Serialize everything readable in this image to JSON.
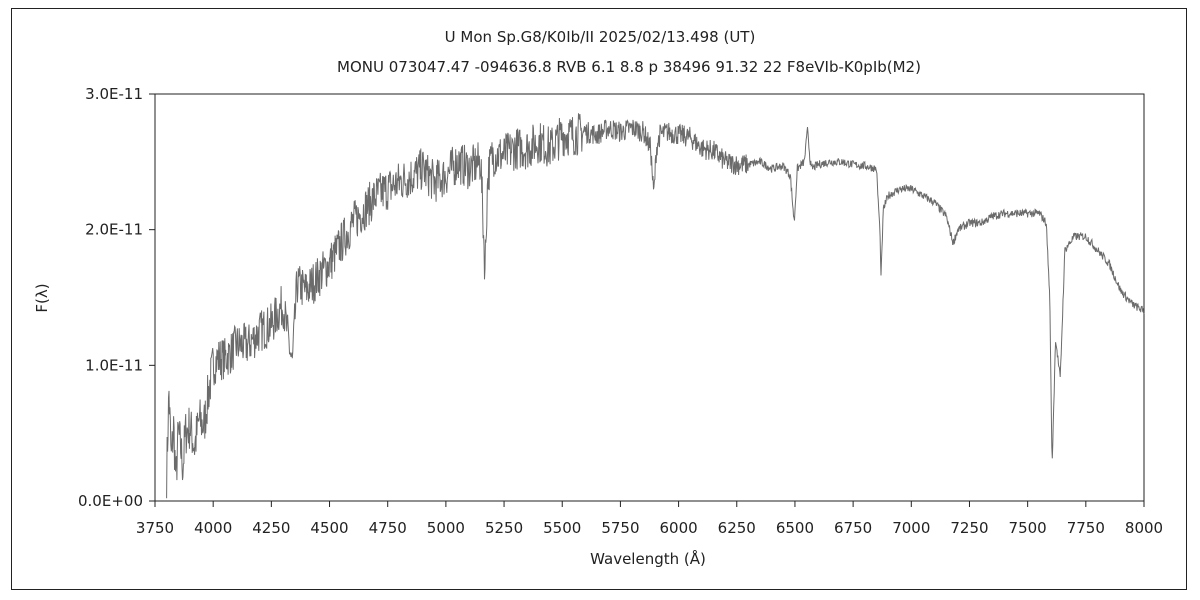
{
  "chart_data": {
    "type": "line",
    "title": "U Mon    Sp.G8/K0Ib/II    2025/02/13.498 (UT)",
    "subtitle": "MONU 073047.47 -094636.8 RVB 6.1 8.8 p 38496 91.32 22 F8eVIb-K0pIb(M2)",
    "xlabel": "Wavelength (Å)",
    "ylabel": "F(λ)",
    "xlim": [
      3750,
      8000
    ],
    "ylim": [
      0,
      3e-11
    ],
    "xticks": [
      "3750",
      "4000",
      "4250",
      "4500",
      "4750",
      "5000",
      "5250",
      "5500",
      "5750",
      "6000",
      "6250",
      "6500",
      "6750",
      "7000",
      "7250",
      "7500",
      "7750",
      "8000"
    ],
    "yticks": [
      "0.0E+00",
      "1.0E-11",
      "2.0E-11",
      "3.0E-11"
    ],
    "grid": false,
    "legend": "none",
    "line_color": "#6b6b6b",
    "series": [
      {
        "x": [
          3800,
          3810,
          3820,
          3830,
          3840,
          3850,
          3860,
          3870,
          3880,
          3900,
          3920,
          3940,
          3960,
          3980,
          4000,
          4020,
          4050,
          4080,
          4100,
          4150,
          4200,
          4250,
          4300,
          4340,
          4360,
          4400,
          4450,
          4500,
          4550,
          4600,
          4650,
          4700,
          4750,
          4800,
          4860,
          4900,
          4950,
          5000,
          5050,
          5100,
          5150,
          5168,
          5180,
          5200,
          5250,
          5300,
          5350,
          5400,
          5450,
          5500,
          5550,
          5600,
          5650,
          5700,
          5750,
          5800,
          5850,
          5880,
          5893,
          5905,
          5920,
          5950,
          6000,
          6050,
          6100,
          6150,
          6200,
          6250,
          6300,
          6350,
          6400,
          6450,
          6480,
          6497,
          6510,
          6540,
          6555,
          6563,
          6570,
          6600,
          6650,
          6700,
          6750,
          6800,
          6850,
          6865,
          6870,
          6880,
          6900,
          6950,
          7000,
          7050,
          7100,
          7150,
          7180,
          7200,
          7250,
          7300,
          7350,
          7400,
          7450,
          7500,
          7550,
          7580,
          7595,
          7605,
          7620,
          7640,
          7660,
          7700,
          7750,
          7800,
          7850,
          7900,
          7950,
          8000
        ],
        "y": [
          2e-12,
          8e-12,
          3e-12,
          5.5e-12,
          1.5e-12,
          5e-12,
          4e-12,
          2.5e-12,
          5e-12,
          5.5e-12,
          4e-12,
          6e-12,
          5.5e-12,
          8e-12,
          1e-11,
          1.05e-11,
          1.05e-11,
          1.1e-11,
          1.15e-11,
          1.15e-11,
          1.25e-11,
          1.3e-11,
          1.45e-11,
          1e-11,
          1.6e-11,
          1.55e-11,
          1.65e-11,
          1.75e-11,
          1.9e-11,
          2.05e-11,
          2.15e-11,
          2.25e-11,
          2.3e-11,
          2.35e-11,
          2.4e-11,
          2.45e-11,
          2.35e-11,
          2.4e-11,
          2.5e-11,
          2.45e-11,
          2.5e-11,
          1.7e-11,
          2.4e-11,
          2.55e-11,
          2.55e-11,
          2.6e-11,
          2.6e-11,
          2.65e-11,
          2.6e-11,
          2.7e-11,
          2.7e-11,
          2.72e-11,
          2.7e-11,
          2.75e-11,
          2.72e-11,
          2.75e-11,
          2.72e-11,
          2.6e-11,
          2.25e-11,
          2.6e-11,
          2.7e-11,
          2.72e-11,
          2.7e-11,
          2.68e-11,
          2.6e-11,
          2.58e-11,
          2.5e-11,
          2.48e-11,
          2.48e-11,
          2.5e-11,
          2.45e-11,
          2.47e-11,
          2.4e-11,
          2.05e-11,
          2.45e-11,
          2.5e-11,
          2.75e-11,
          2.55e-11,
          2.45e-11,
          2.48e-11,
          2.5e-11,
          2.5e-11,
          2.48e-11,
          2.47e-11,
          2.45e-11,
          2e-11,
          1.65e-11,
          2.15e-11,
          2.25e-11,
          2.3e-11,
          2.3e-11,
          2.25e-11,
          2.2e-11,
          2.1e-11,
          1.9e-11,
          2e-11,
          2.05e-11,
          2.05e-11,
          2.1e-11,
          2.12e-11,
          2.12e-11,
          2.12e-11,
          2.12e-11,
          2.05e-11,
          1.5e-11,
          2.5e-12,
          1.2e-11,
          9e-12,
          1.85e-11,
          1.95e-11,
          1.95e-11,
          1.85e-11,
          1.75e-11,
          1.55e-11,
          1.45e-11,
          1.4e-11
        ]
      }
    ]
  }
}
